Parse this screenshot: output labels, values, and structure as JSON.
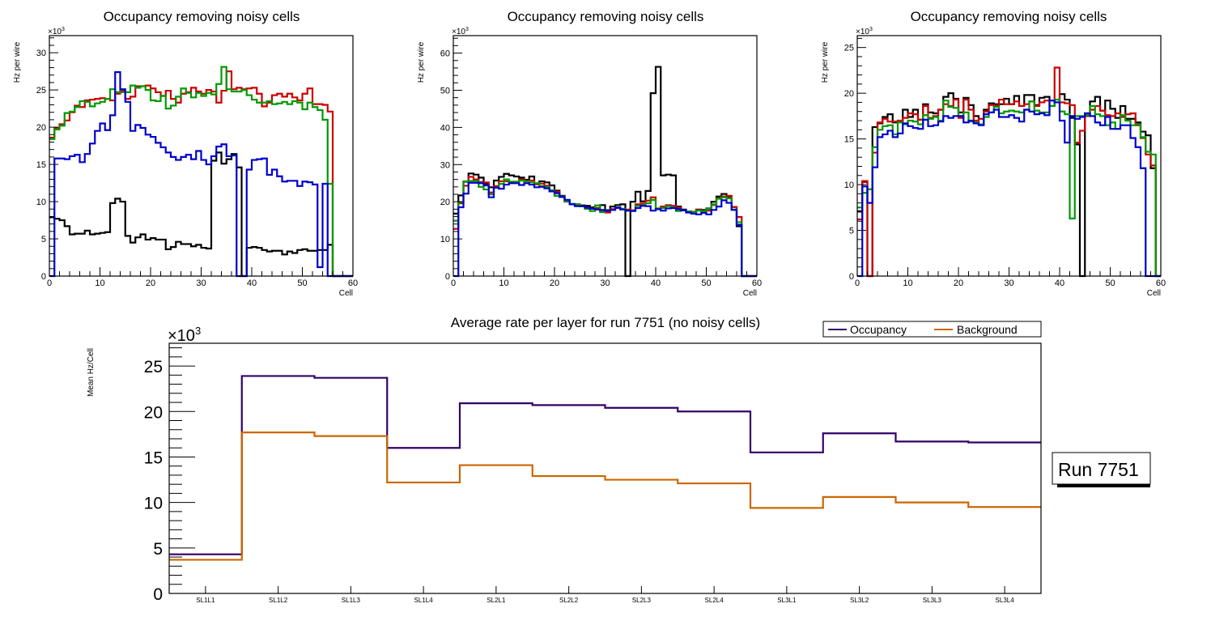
{
  "chart_data": [
    {
      "type": "bar",
      "style": "step-histogram",
      "title": "Occupancy removing noisy cells",
      "xlabel": "Cell",
      "ylabel": "Hz per wire",
      "y_multiplier": "×10^3",
      "xlim": [
        0,
        60
      ],
      "ylim": [
        0,
        32.3
      ],
      "xticks": [
        "0",
        "10",
        "20",
        "30",
        "40",
        "50",
        "60"
      ],
      "yticks": [
        "0",
        "5",
        "10",
        "15",
        "20",
        "25",
        "30"
      ],
      "ytick_values": [
        0,
        5,
        10,
        15,
        20,
        25,
        30
      ],
      "xtick_values": [
        0,
        10,
        20,
        30,
        40,
        50,
        60
      ],
      "grid": false,
      "bin_width": 1,
      "series": [
        {
          "name": "layer-black",
          "color": "#000000",
          "values": [
            7.9,
            7.7,
            7.5,
            6.7,
            5.6,
            5.7,
            5.7,
            6.1,
            5.6,
            5.7,
            5.8,
            5.9,
            9.8,
            10.4,
            10.0,
            5.4,
            4.5,
            5.2,
            5.6,
            4.9,
            5.1,
            4.9,
            4.9,
            3.6,
            3.9,
            4.6,
            4.3,
            4.3,
            4.0,
            4.2,
            3.8,
            3.7,
            15.5,
            16.6,
            15.1,
            15.7,
            16.4,
            14.6,
            0,
            3.8,
            3.9,
            3.8,
            3.5,
            3.3,
            3.4,
            3.4,
            2.9,
            3.3,
            3.1,
            3.5,
            3.6,
            3.4,
            3.4,
            3.5,
            3.5,
            4.2,
            0,
            0,
            0,
            0
          ]
        },
        {
          "name": "layer-red",
          "color": "#cc0000",
          "values": [
            18.6,
            19.9,
            20.4,
            20.9,
            22.0,
            22.9,
            22.7,
            23.6,
            23.7,
            23.8,
            23.9,
            23.8,
            23.6,
            24.5,
            24.9,
            23.8,
            24.1,
            25.5,
            25.5,
            25.6,
            25.2,
            24.7,
            24.2,
            24.9,
            23.8,
            23.3,
            24.5,
            24.7,
            25.3,
            24.8,
            24.5,
            25.0,
            24.8,
            23.3,
            24.9,
            27.5,
            25.1,
            25.3,
            25.1,
            25.2,
            25.3,
            24.5,
            22.8,
            23.3,
            24.3,
            24.5,
            24.1,
            24.5,
            24.0,
            23.6,
            24.5,
            25.2,
            23.1,
            23.1,
            23.0,
            22.1,
            0,
            0,
            0,
            0
          ]
        },
        {
          "name": "layer-green",
          "color": "#009900",
          "values": [
            18.4,
            19.7,
            20.2,
            21.9,
            22.1,
            22.7,
            23.5,
            23.4,
            22.8,
            23.2,
            23.4,
            23.8,
            25.1,
            24.7,
            24.7,
            24.7,
            25.6,
            25.3,
            25.5,
            25.0,
            23.6,
            23.5,
            24.2,
            22.5,
            22.9,
            24.1,
            25.2,
            24.6,
            24.0,
            24.6,
            24.2,
            24.6,
            24.4,
            25.8,
            28.1,
            25.1,
            24.8,
            24.8,
            25.0,
            24.3,
            23.7,
            23.3,
            23.3,
            23.5,
            23.1,
            23.2,
            23.4,
            23.1,
            23.5,
            23.3,
            22.4,
            23.3,
            22.7,
            22.3,
            21.0,
            12.4,
            0,
            0,
            0,
            0
          ]
        },
        {
          "name": "layer-blue",
          "color": "#0000cc",
          "values": [
            0,
            15.8,
            15.8,
            15.7,
            16.1,
            16.3,
            15.3,
            16.4,
            17.8,
            19.5,
            20.5,
            19.6,
            21.6,
            27.4,
            25.1,
            23.4,
            19.5,
            20.3,
            19.9,
            19.0,
            18.7,
            17.9,
            17.3,
            16.6,
            16.0,
            15.6,
            16.0,
            16.3,
            15.7,
            16.8,
            15.6,
            15.0,
            16.1,
            17.4,
            17.7,
            16.1,
            16.2,
            0,
            0,
            14.3,
            15.6,
            15.7,
            15.8,
            13.6,
            14.3,
            13.4,
            12.7,
            12.8,
            12.8,
            12.1,
            12.7,
            12.6,
            12.3,
            1.2,
            12.4,
            0,
            0,
            0,
            0,
            0
          ]
        }
      ]
    },
    {
      "type": "bar",
      "style": "step-histogram",
      "title": "Occupancy removing noisy cells",
      "xlabel": "Cell",
      "ylabel": "Hz per wire",
      "y_multiplier": "×10^3",
      "xlim": [
        0,
        60
      ],
      "ylim": [
        0,
        64.7
      ],
      "xticks": [
        "0",
        "10",
        "20",
        "30",
        "40",
        "50",
        "60"
      ],
      "yticks": [
        "0",
        "10",
        "20",
        "30",
        "40",
        "50",
        "60"
      ],
      "ytick_values": [
        0,
        10,
        20,
        30,
        40,
        50,
        60
      ],
      "xtick_values": [
        0,
        10,
        20,
        30,
        40,
        50,
        60
      ],
      "grid": false,
      "bin_width": 1,
      "series": [
        {
          "name": "layer-black",
          "color": "#000000",
          "values": [
            16.8,
            21.7,
            25.4,
            27.6,
            27.3,
            26.5,
            24.8,
            23.9,
            25.7,
            26.7,
            27.5,
            27.1,
            26.8,
            26.5,
            25.9,
            26.8,
            24.9,
            25.5,
            25.2,
            24.4,
            23.0,
            21.6,
            20.1,
            19.4,
            19.1,
            19.0,
            18.9,
            18.5,
            18.3,
            19.1,
            17.4,
            18.7,
            19.1,
            19.3,
            0,
            20.0,
            22.7,
            20.1,
            22.9,
            49.2,
            56.3,
            27.1,
            27.3,
            27.1,
            18.7,
            17.9,
            17.4,
            17.1,
            17.9,
            17.8,
            18.2,
            20.0,
            21.4,
            22.1,
            21.4,
            18.6,
            13.4,
            0,
            0,
            0
          ]
        },
        {
          "name": "layer-red",
          "color": "#cc0000",
          "values": [
            12.7,
            19.6,
            24.3,
            26.7,
            26.0,
            25.3,
            25.2,
            22.5,
            24.2,
            25.5,
            25.5,
            25.3,
            25.3,
            26.0,
            25.6,
            25.7,
            24.7,
            24.9,
            24.3,
            22.8,
            22.7,
            21.3,
            20.1,
            19.3,
            19.3,
            18.8,
            18.4,
            18.2,
            18.2,
            17.5,
            17.1,
            18.0,
            18.3,
            18.1,
            17.9,
            17.7,
            19.3,
            19.5,
            20.3,
            21.2,
            18.2,
            18.7,
            19.1,
            18.9,
            18.4,
            17.7,
            17.4,
            17.3,
            17.8,
            17.3,
            17.6,
            19.1,
            20.9,
            21.4,
            21.6,
            18.6,
            15.9,
            0,
            0,
            0
          ]
        },
        {
          "name": "layer-green",
          "color": "#009900",
          "values": [
            14.9,
            19.9,
            25.5,
            25.6,
            25.6,
            24.0,
            23.3,
            22.0,
            23.8,
            24.8,
            26.0,
            25.4,
            25.4,
            25.7,
            25.5,
            25.2,
            25.0,
            24.2,
            24.0,
            23.1,
            21.6,
            21.4,
            20.0,
            19.4,
            19.3,
            18.8,
            18.1,
            17.5,
            19.0,
            17.2,
            17.8,
            17.8,
            18.5,
            18.1,
            17.6,
            17.6,
            18.9,
            19.0,
            19.6,
            20.5,
            18.2,
            18.3,
            18.8,
            18.4,
            17.5,
            17.7,
            17.4,
            17.2,
            17.6,
            17.5,
            18.1,
            19.3,
            20.8,
            21.2,
            20.9,
            17.9,
            14.5,
            0,
            0,
            0
          ]
        },
        {
          "name": "layer-blue",
          "color": "#0000cc",
          "values": [
            0,
            18.5,
            22.2,
            25.1,
            25.1,
            25.0,
            24.4,
            21.2,
            23.8,
            23.5,
            24.6,
            25.0,
            25.0,
            24.5,
            25.0,
            24.6,
            23.9,
            24.0,
            23.6,
            22.8,
            22.3,
            21.3,
            20.5,
            19.3,
            18.8,
            18.8,
            18.4,
            18.1,
            17.9,
            17.8,
            17.6,
            17.8,
            18.4,
            17.9,
            17.6,
            17.5,
            18.3,
            18.9,
            18.8,
            17.6,
            18.0,
            17.6,
            18.2,
            18.3,
            18.0,
            17.7,
            17.1,
            16.8,
            16.6,
            17.0,
            16.6,
            17.8,
            18.7,
            20.4,
            19.7,
            17.8,
            13.8,
            0,
            0,
            0
          ]
        }
      ]
    },
    {
      "type": "bar",
      "style": "step-histogram",
      "title": "Occupancy removing noisy cells",
      "xlabel": "Cell",
      "ylabel": "Hz per wire",
      "y_multiplier": "×10^3",
      "xlim": [
        0,
        60
      ],
      "ylim": [
        0,
        26.3
      ],
      "xticks": [
        "0",
        "10",
        "20",
        "30",
        "40",
        "50",
        "60"
      ],
      "yticks": [
        "0",
        "5",
        "10",
        "15",
        "20",
        "25"
      ],
      "ytick_values": [
        0,
        5,
        10,
        15,
        20,
        25
      ],
      "xtick_values": [
        0,
        10,
        20,
        30,
        40,
        50,
        60
      ],
      "grid": false,
      "bin_width": 1,
      "series": [
        {
          "name": "layer-black",
          "color": "#000000",
          "values": [
            7.1,
            10.3,
            0,
            16.3,
            16.7,
            17.4,
            17.7,
            16.8,
            16.9,
            18.2,
            17.4,
            18.2,
            17.1,
            18.8,
            17.9,
            17.8,
            18.2,
            19.6,
            20.0,
            19.4,
            17.9,
            19.5,
            18.7,
            17.5,
            16.6,
            18.2,
            18.9,
            18.8,
            18.8,
            19.4,
            18.8,
            19.7,
            18.6,
            19.8,
            19.8,
            18.7,
            19.5,
            19.6,
            18.6,
            19.0,
            19.9,
            19.3,
            17.3,
            14.4,
            0,
            17.8,
            19.1,
            19.6,
            18.1,
            19.2,
            18.3,
            17.3,
            18.6,
            17.2,
            17.2,
            16.8,
            15.8,
            15.4,
            11.8,
            0
          ]
        },
        {
          "name": "layer-red",
          "color": "#cc0000",
          "values": [
            6.2,
            10.4,
            0,
            13.5,
            16.8,
            17.2,
            16.9,
            16.9,
            17.0,
            17.3,
            17.8,
            17.7,
            17.1,
            18.6,
            17.3,
            17.5,
            18.2,
            18.8,
            18.6,
            19.3,
            17.3,
            19.3,
            18.2,
            17.0,
            17.2,
            18.0,
            18.7,
            18.6,
            19.3,
            18.8,
            18.8,
            19.1,
            18.6,
            18.8,
            19.1,
            18.6,
            19.0,
            19.2,
            19.2,
            22.8,
            19.0,
            18.9,
            18.7,
            14.6,
            15.9,
            17.5,
            18.2,
            18.6,
            18.1,
            17.6,
            17.5,
            17.8,
            17.4,
            17.7,
            17.8,
            16.5,
            15.1,
            13.3,
            12.1,
            0
          ]
        },
        {
          "name": "layer-green",
          "color": "#009900",
          "values": [
            7.5,
            9.1,
            9.5,
            14.1,
            16.0,
            16.4,
            16.5,
            15.5,
            16.8,
            16.6,
            17.0,
            16.9,
            16.6,
            17.6,
            17.2,
            17.4,
            17.0,
            19.2,
            18.5,
            18.4,
            17.5,
            17.9,
            16.9,
            16.8,
            16.6,
            17.4,
            17.9,
            18.5,
            17.8,
            18.0,
            18.1,
            18.0,
            17.9,
            18.2,
            19.1,
            18.1,
            17.9,
            17.9,
            18.6,
            19.3,
            18.0,
            17.7,
            6.3,
            17.5,
            17.5,
            17.6,
            18.6,
            17.7,
            17.5,
            16.5,
            16.8,
            16.1,
            17.6,
            17.0,
            16.5,
            16.6,
            15.2,
            13.6,
            13.3,
            0
          ]
        },
        {
          "name": "layer-blue",
          "color": "#0000cc",
          "values": [
            0,
            9.8,
            8.0,
            11.9,
            15.2,
            15.5,
            15.9,
            15.2,
            15.6,
            16.7,
            16.4,
            16.2,
            16.1,
            17.1,
            16.4,
            16.5,
            16.9,
            17.5,
            17.3,
            17.5,
            17.5,
            16.8,
            17.0,
            16.7,
            16.5,
            17.7,
            17.9,
            18.2,
            17.4,
            17.4,
            17.6,
            17.3,
            16.9,
            18.2,
            18.0,
            17.7,
            17.8,
            17.6,
            19.2,
            19.0,
            17.0,
            14.6,
            17.5,
            17.2,
            17.4,
            17.8,
            17.5,
            16.8,
            16.5,
            17.4,
            16.1,
            16.1,
            16.5,
            16.5,
            15.1,
            14.1,
            11.8,
            0,
            0,
            0
          ]
        }
      ]
    },
    {
      "type": "line",
      "style": "step-histogram",
      "title": "Average rate per layer for run 7751 (no noisy cells)",
      "xlabel": "",
      "ylabel": "Mean Hz/Cell",
      "y_multiplier": "×10^3",
      "categories": [
        "SL1L1",
        "SL1L2",
        "SL1L3",
        "SL1L4",
        "SL2L1",
        "SL2L2",
        "SL2L3",
        "SL2L4",
        "SL3L1",
        "SL3L2",
        "SL3L3",
        "SL3L4"
      ],
      "ylim": [
        0,
        27.5
      ],
      "yticks": [
        "0",
        "5",
        "10",
        "15",
        "20",
        "25"
      ],
      "ytick_values": [
        0,
        5,
        10,
        15,
        20,
        25
      ],
      "grid": false,
      "legend_position": "top-right",
      "series": [
        {
          "name": "Occupancy",
          "color": "#330066",
          "values": [
            4.3,
            23.9,
            23.7,
            16.0,
            20.9,
            20.7,
            20.4,
            20.0,
            15.5,
            17.6,
            16.7,
            16.6
          ]
        },
        {
          "name": "Background",
          "color": "#cc6600",
          "values": [
            3.7,
            17.7,
            17.3,
            12.2,
            14.1,
            12.9,
            12.5,
            12.1,
            9.4,
            10.6,
            10.0,
            9.5
          ]
        }
      ]
    }
  ],
  "labels": {
    "multiplier_base": "×10",
    "multiplier_exp": "3",
    "legend_occupancy": "Occupancy",
    "legend_background": "Background",
    "run_box": "Run 7751"
  }
}
